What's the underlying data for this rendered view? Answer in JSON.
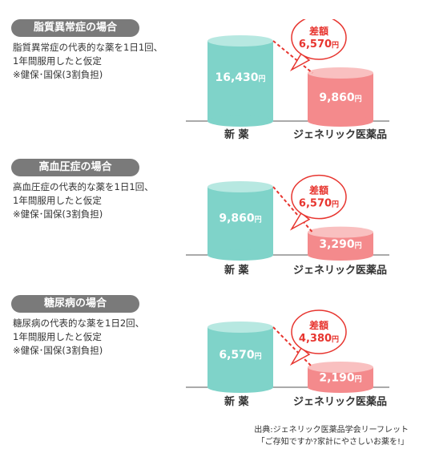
{
  "colors": {
    "new_drug": "#7fd3c9",
    "new_drug_top": "#b7e8e1",
    "generic": "#f48a8c",
    "generic_top": "#f9c0c0",
    "diff_text": "#e7352f",
    "bubble_border": "#e7352f",
    "pill_bg": "#7a7a7a",
    "baseline": "#555555"
  },
  "categories": [
    "新 薬",
    "ジェネリック医薬品"
  ],
  "unit": "円",
  "diff_label": "差額",
  "panels": [
    {
      "title": "脂質異常症の場合",
      "desc": [
        "脂質異常症の代表的な薬を1日1回、",
        "1年間服用したと仮定",
        "※健保･国保(3割負担)"
      ],
      "new_drug_value": "16,430",
      "generic_value": "9,860",
      "diff_value": "6,570"
    },
    {
      "title": "高血圧症の場合",
      "desc": [
        "高血圧症の代表的な薬を1日1回、",
        "1年間服用したと仮定",
        "※健保･国保(3割負担)"
      ],
      "new_drug_value": "9,860",
      "generic_value": "3,290",
      "diff_value": "6,570"
    },
    {
      "title": "糖尿病の場合",
      "desc": [
        "糖尿病の代表的な薬を1日2回、",
        "1年間服用したと仮定",
        "※健保･国保(3割負担)"
      ],
      "new_drug_value": "6,570",
      "generic_value": "2,190",
      "diff_value": "4,380"
    }
  ],
  "chart_data": [
    {
      "type": "bar",
      "title": "脂質異常症の場合",
      "categories": [
        "新 薬",
        "ジェネリック医薬品"
      ],
      "values": [
        16430,
        9860
      ],
      "unit": "円",
      "annotation": "差額 6,570円"
    },
    {
      "type": "bar",
      "title": "高血圧症の場合",
      "categories": [
        "新 薬",
        "ジェネリック医薬品"
      ],
      "values": [
        9860,
        3290
      ],
      "unit": "円",
      "annotation": "差額 6,570円"
    },
    {
      "type": "bar",
      "title": "糖尿病の場合",
      "categories": [
        "新 薬",
        "ジェネリック医薬品"
      ],
      "values": [
        6570,
        2190
      ],
      "unit": "円",
      "annotation": "差額 4,380円"
    }
  ],
  "source": {
    "line1": "出典:ジェネリック医薬品学会リーフレット",
    "line2": "「ご存知ですか?家計にやさしいお薬を!」"
  }
}
